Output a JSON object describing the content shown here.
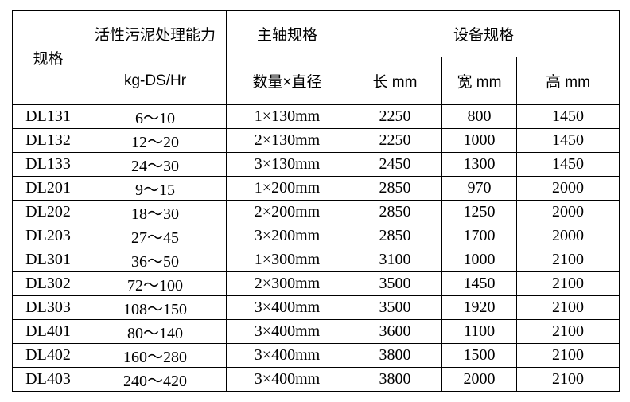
{
  "page": {
    "background_color": "#ffffff",
    "grid_color": "#000000",
    "text_color": "#000000"
  },
  "table": {
    "header": {
      "spec": "规格",
      "capacity": "活性污泥处理能力",
      "capacity_unit": "kg-DS/Hr",
      "shaft": "主轴规格",
      "shaft_sub": "数量×直径",
      "equipment": "设备规格",
      "length": "长 mm",
      "width": "宽 mm",
      "height": "高 mm"
    },
    "rows": [
      {
        "spec": "DL131",
        "capacity": "6～10",
        "shaft": "1×130mm",
        "length": "2250",
        "width": "800",
        "height": "1450"
      },
      {
        "spec": "DL132",
        "capacity": "12～20",
        "shaft": "2×130mm",
        "length": "2250",
        "width": "1000",
        "height": "1450"
      },
      {
        "spec": "DL133",
        "capacity": "24～30",
        "shaft": "3×130mm",
        "length": "2450",
        "width": "1300",
        "height": "1450"
      },
      {
        "spec": "DL201",
        "capacity": "9～15",
        "shaft": "1×200mm",
        "length": "2850",
        "width": "970",
        "height": "2000"
      },
      {
        "spec": "DL202",
        "capacity": "18～30",
        "shaft": "2×200mm",
        "length": "2850",
        "width": "1250",
        "height": "2000"
      },
      {
        "spec": "DL203",
        "capacity": "27～45",
        "shaft": "3×200mm",
        "length": "2850",
        "width": "1700",
        "height": "2000"
      },
      {
        "spec": "DL301",
        "capacity": "36～50",
        "shaft": "1×300mm",
        "length": "3100",
        "width": "1000",
        "height": "2100"
      },
      {
        "spec": "DL302",
        "capacity": "72～100",
        "shaft": "2×300mm",
        "length": "3500",
        "width": "1450",
        "height": "2100"
      },
      {
        "spec": "DL303",
        "capacity": "108～150",
        "shaft": "3×400mm",
        "length": "3500",
        "width": "1920",
        "height": "2100"
      },
      {
        "spec": "DL401",
        "capacity": "80～140",
        "shaft": "3×400mm",
        "length": "3600",
        "width": "1100",
        "height": "2100"
      },
      {
        "spec": "DL402",
        "capacity": "160～280",
        "shaft": "3×400mm",
        "length": "3800",
        "width": "1500",
        "height": "2100"
      },
      {
        "spec": "DL403",
        "capacity": "240～420",
        "shaft": "3×400mm",
        "length": "3800",
        "width": "2000",
        "height": "2100"
      }
    ]
  }
}
